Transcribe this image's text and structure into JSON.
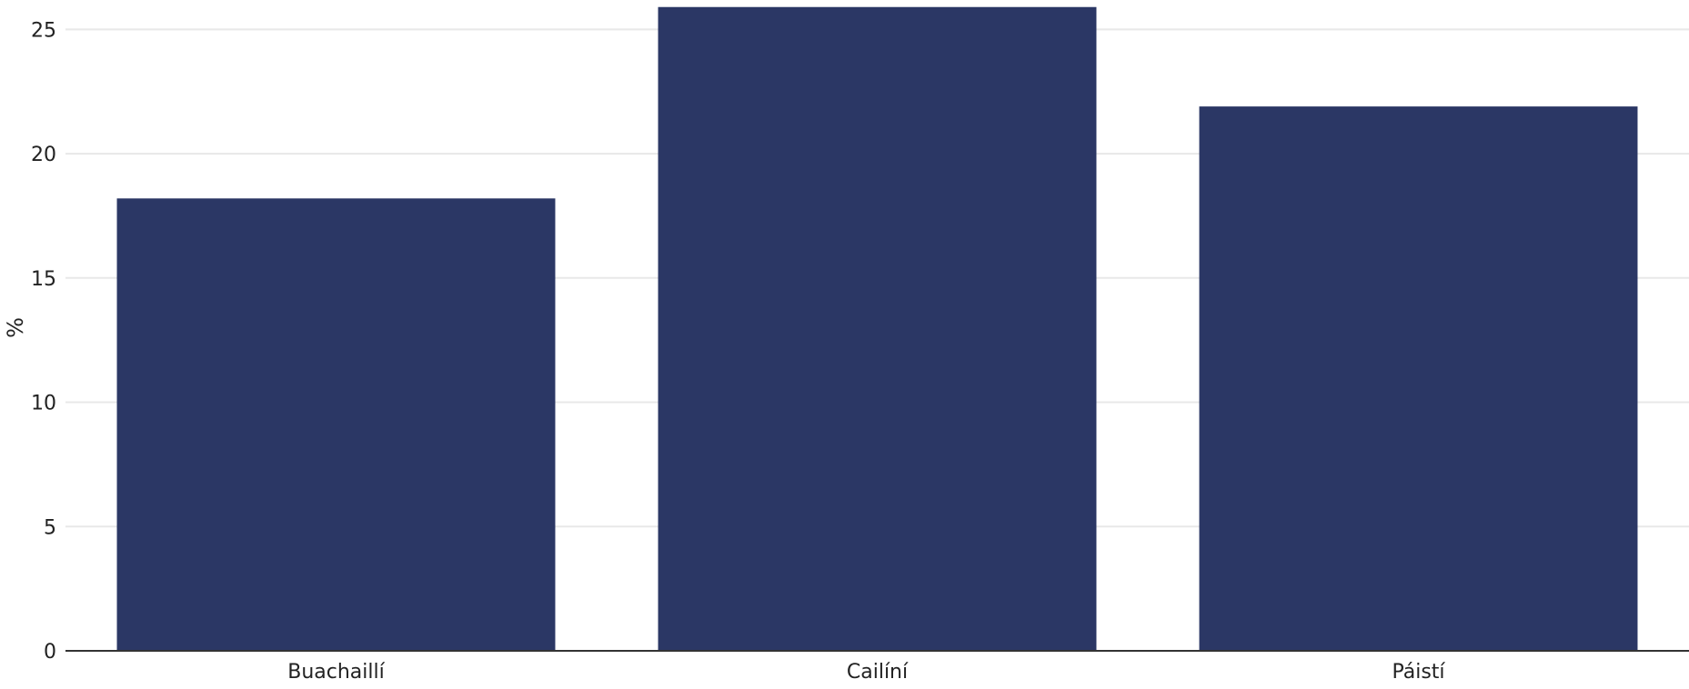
{
  "chart_data": {
    "type": "bar",
    "categories": [
      "Buachaillí",
      "Cailíní",
      "Páistí"
    ],
    "values": [
      18.2,
      25.9,
      21.9
    ],
    "ylabel": "%",
    "xlabel": "",
    "ylim": [
      0,
      26
    ],
    "yticks": [
      0,
      5,
      10,
      15,
      20,
      25
    ],
    "grid": true,
    "colors": {
      "bar": "#2b3765",
      "grid": "#e8e8e8",
      "axis": "#333333"
    }
  }
}
